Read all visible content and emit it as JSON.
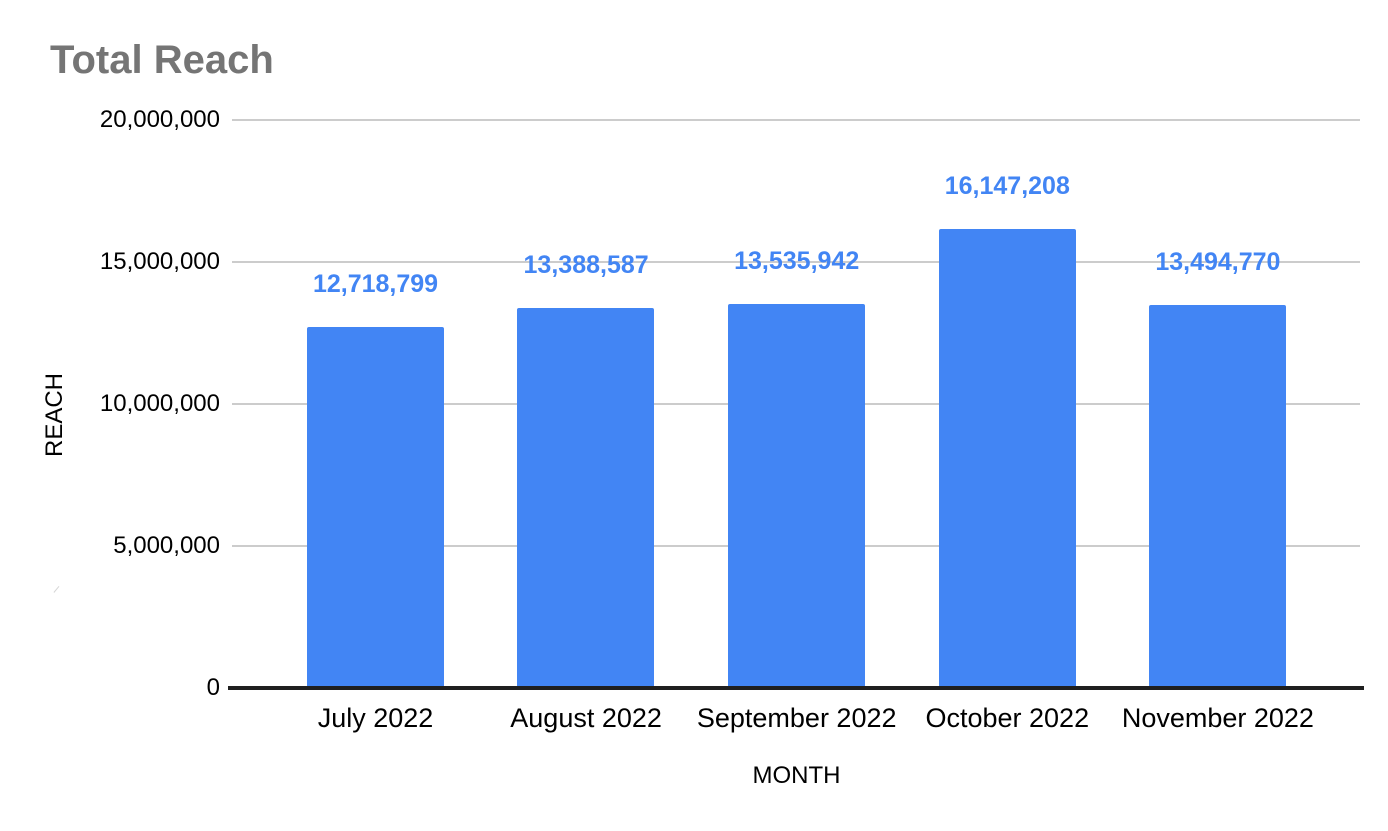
{
  "chart_data": {
    "type": "bar",
    "title": "Total Reach",
    "categories": [
      "July 2022",
      "August 2022",
      "September 2022",
      "October 2022",
      "November 2022"
    ],
    "values": [
      12718799,
      13388587,
      13535942,
      16147208,
      13494770
    ],
    "value_labels": [
      "12,718,799",
      "13,388,587",
      "13,535,942",
      "16,147,208",
      "13,494,770"
    ],
    "xlabel": "MONTH",
    "ylabel": "REACH",
    "ylim": [
      0,
      20000000
    ],
    "ytick_interval": 5000000,
    "yticks": [
      "0",
      "5,000,000",
      "10,000,000",
      "15,000,000",
      "20,000,000"
    ],
    "grid": true,
    "legend": "none",
    "colors": {
      "bar": "#4285f4",
      "value_label": "#4285f4",
      "title": "#757575",
      "gridline": "#cccccc",
      "axis_line": "#1f1f1f",
      "tick_label": "#000000"
    }
  }
}
